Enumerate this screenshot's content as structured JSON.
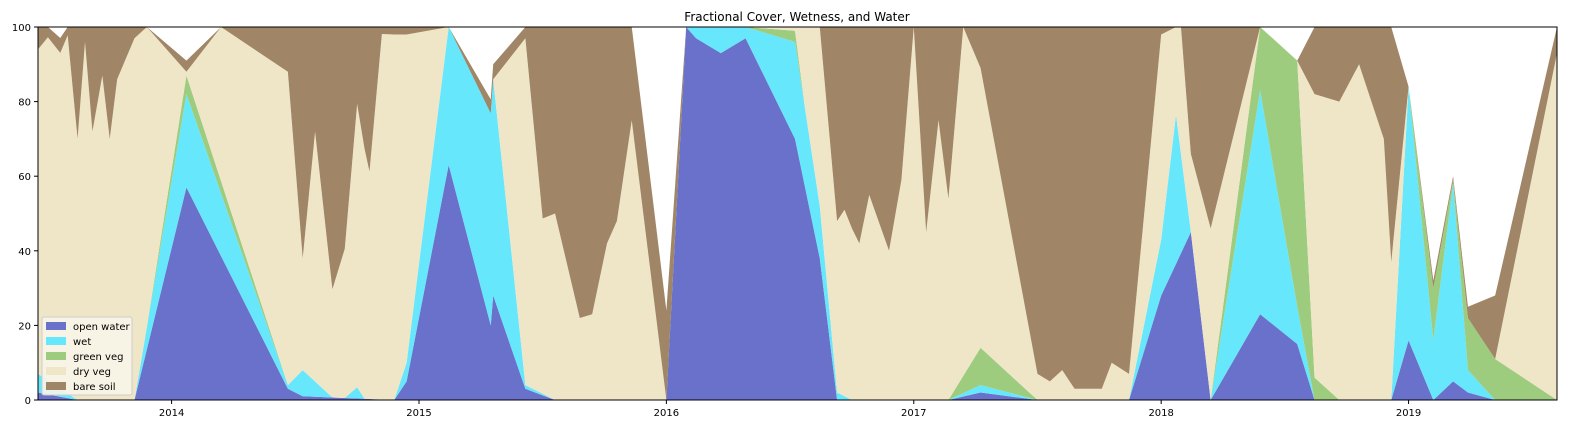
{
  "chart_data": {
    "type": "area",
    "title": "Fractional Cover, Wetness, and Water",
    "xlabel": "",
    "ylabel": "",
    "xlim": [
      2013.46,
      2019.6
    ],
    "ylim": [
      0,
      100
    ],
    "x_ticks": [
      2014,
      2015,
      2016,
      2017,
      2018,
      2019
    ],
    "y_ticks": [
      0,
      20,
      40,
      60,
      80,
      100
    ],
    "legend_position": "lower-left",
    "series": [
      {
        "name": "open water",
        "color": "#6a71cb",
        "x": [
          2013.46,
          2013.62,
          2013.85,
          2014.06,
          2014.47,
          2014.53,
          2014.9,
          2014.95,
          2015.12,
          2015.29,
          2015.3,
          2015.43,
          2015.55,
          2016.0,
          2016.08,
          2016.12,
          2016.22,
          2016.32,
          2016.52,
          2016.62,
          2016.69,
          2017.0,
          2017.14,
          2017.27,
          2017.5,
          2017.87,
          2018.0,
          2018.12,
          2018.2,
          2018.4,
          2018.55,
          2018.62,
          2018.93,
          2019.0,
          2019.1,
          2019.18,
          2019.24,
          2019.35,
          2019.6
        ],
        "values": [
          2,
          0,
          0,
          57,
          3,
          1,
          0,
          5,
          63,
          20,
          28,
          3,
          0,
          0,
          100,
          97,
          93,
          97,
          70,
          38,
          0,
          0,
          0,
          2,
          0,
          0,
          28,
          45,
          0,
          23,
          15,
          0,
          0,
          16,
          0,
          5,
          2,
          0,
          0
        ]
      },
      {
        "name": "wet",
        "color": "#67e7fb",
        "x": [
          2013.46,
          2013.62,
          2013.85,
          2014.06,
          2014.47,
          2014.53,
          2014.65,
          2014.7,
          2014.75,
          2014.78,
          2014.9,
          2014.95,
          2015.12,
          2015.3,
          2015.43,
          2015.55,
          2016.0,
          2016.08,
          2016.12,
          2016.52,
          2016.62,
          2016.69,
          2016.75,
          2017.0,
          2017.14,
          2017.27,
          2017.5,
          2017.87,
          2018.0,
          2018.06,
          2018.12,
          2018.2,
          2018.4,
          2018.55,
          2018.62,
          2018.93,
          2019.0,
          2019.1,
          2019.18,
          2019.24,
          2019.35,
          2019.6
        ],
        "values": [
          5,
          0,
          0,
          25,
          1,
          7,
          0,
          0,
          3,
          0,
          0,
          5,
          37,
          58,
          1,
          0,
          0,
          0,
          3,
          26,
          14,
          2,
          0,
          0,
          0,
          2,
          0,
          0,
          15,
          40,
          0,
          0,
          60,
          10,
          0,
          0,
          68,
          16,
          53,
          6,
          0,
          0
        ]
      },
      {
        "name": "green veg",
        "color": "#9ecc7e",
        "x": [
          2013.46,
          2013.9,
          2014.06,
          2014.47,
          2014.9,
          2016.32,
          2016.52,
          2016.56,
          2016.69,
          2017.14,
          2017.27,
          2017.5,
          2018.2,
          2018.4,
          2018.55,
          2018.62,
          2018.72,
          2019.0,
          2019.1,
          2019.18,
          2019.24,
          2019.35,
          2019.6
        ],
        "values": [
          0,
          0,
          5,
          0,
          0,
          0,
          3,
          0,
          0,
          0,
          10,
          0,
          0,
          17,
          66,
          6,
          0,
          0,
          14,
          1,
          14,
          11,
          0
        ]
      },
      {
        "name": "dry veg",
        "color": "#efe6c8",
        "x": [
          2013.46,
          2013.5,
          2013.55,
          2013.58,
          2013.62,
          2013.65,
          2013.68,
          2013.72,
          2013.75,
          2013.78,
          2013.85,
          2013.9,
          2014.06,
          2014.2,
          2014.47,
          2014.53,
          2014.58,
          2014.65,
          2014.7,
          2014.75,
          2014.8,
          2014.85,
          2014.9,
          2014.95,
          2015.12,
          2015.3,
          2015.43,
          2015.5,
          2015.55,
          2015.65,
          2015.7,
          2015.76,
          2015.8,
          2015.86,
          2016.0,
          2016.08,
          2016.52,
          2016.6,
          2016.69,
          2016.72,
          2016.78,
          2016.82,
          2016.9,
          2016.95,
          2017.0,
          2017.05,
          2017.1,
          2017.14,
          2017.2,
          2017.27,
          2017.5,
          2017.55,
          2017.6,
          2017.65,
          2017.7,
          2017.76,
          2017.8,
          2017.87,
          2018.0,
          2018.08,
          2018.12,
          2018.2,
          2018.4,
          2018.55,
          2018.62,
          2018.72,
          2018.8,
          2018.85,
          2018.9,
          2018.93,
          2019.0,
          2019.1,
          2019.18,
          2019.24,
          2019.35,
          2019.6
        ],
        "values": [
          87,
          92,
          90,
          96,
          70,
          96,
          72,
          87,
          70,
          86,
          97,
          96,
          1,
          90,
          84,
          30,
          67,
          29,
          40,
          76,
          61,
          98,
          98,
          88,
          0,
          0,
          93,
          47,
          50,
          22,
          23,
          42,
          48,
          75,
          0,
          0,
          1,
          96,
          46,
          50,
          42,
          55,
          40,
          59,
          100,
          45,
          75,
          54,
          99,
          75,
          7,
          5,
          8,
          3,
          3,
          3,
          10,
          7,
          55,
          60,
          21,
          46,
          0,
          0,
          76,
          80,
          90,
          80,
          70,
          37,
          0,
          0,
          0,
          0,
          0,
          93
        ]
      },
      {
        "name": "bare soil",
        "color": "#a08566",
        "x": [
          2013.46,
          2013.5,
          2013.55,
          2013.58,
          2013.62,
          2013.65,
          2013.68,
          2013.72,
          2013.75,
          2013.78,
          2013.85,
          2013.9,
          2014.06,
          2014.2,
          2014.47,
          2014.53,
          2014.58,
          2014.65,
          2014.7,
          2014.75,
          2014.8,
          2014.85,
          2014.9,
          2014.95,
          2015.12,
          2015.3,
          2015.43,
          2015.5,
          2015.55,
          2015.65,
          2015.7,
          2015.76,
          2015.8,
          2015.86,
          2016.0,
          2016.08,
          2016.52,
          2016.6,
          2016.69,
          2016.72,
          2016.78,
          2016.82,
          2016.9,
          2016.95,
          2017.0,
          2017.05,
          2017.1,
          2017.14,
          2017.2,
          2017.27,
          2017.5,
          2017.55,
          2017.6,
          2017.65,
          2017.7,
          2017.76,
          2017.8,
          2017.87,
          2018.0,
          2018.08,
          2018.12,
          2018.2,
          2018.4,
          2018.55,
          2018.62,
          2018.72,
          2018.8,
          2018.85,
          2018.9,
          2018.93,
          2019.0,
          2019.1,
          2019.18,
          2019.24,
          2019.35,
          2019.6
        ],
        "values": [
          6,
          8,
          4,
          4,
          30,
          4,
          28,
          13,
          30,
          14,
          3,
          4,
          3,
          10,
          12,
          62,
          33,
          71,
          60,
          24,
          39,
          2,
          2,
          2,
          0,
          4,
          3,
          53,
          50,
          78,
          77,
          58,
          52,
          25,
          24,
          0,
          0,
          4,
          54,
          50,
          58,
          45,
          60,
          41,
          0,
          55,
          25,
          46,
          1,
          11,
          93,
          95,
          92,
          97,
          97,
          97,
          90,
          93,
          17,
          36,
          34,
          54,
          0,
          0,
          24,
          20,
          10,
          20,
          30,
          63,
          0,
          2,
          1,
          3,
          17,
          7
        ]
      }
    ]
  }
}
